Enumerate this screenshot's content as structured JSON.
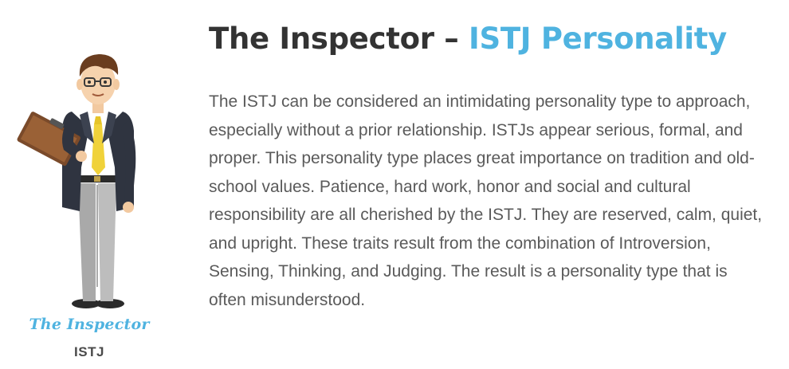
{
  "illustration": {
    "caption_name": "The Inspector",
    "caption_type": "ISTJ"
  },
  "heading": {
    "title_main": "The Inspector –",
    "title_accent": "ISTJ Personality"
  },
  "description": "The ISTJ can be considered an intimidating personality type to approach, especially without a prior relationship. ISTJs appear serious, formal, and proper. This personality type places great importance on tradition and old-school values. Patience, hard work, honor and social and cultural responsibility are all cherished by the ISTJ. They are reserved, calm, quiet, and upright. These traits result from the combination of Introversion, Sensing, Thinking, and Judging. The result is a personality type that is often misunderstood.",
  "colors": {
    "accent": "#4fb3e0",
    "heading": "#333333",
    "body_text": "#5a5a5a"
  }
}
